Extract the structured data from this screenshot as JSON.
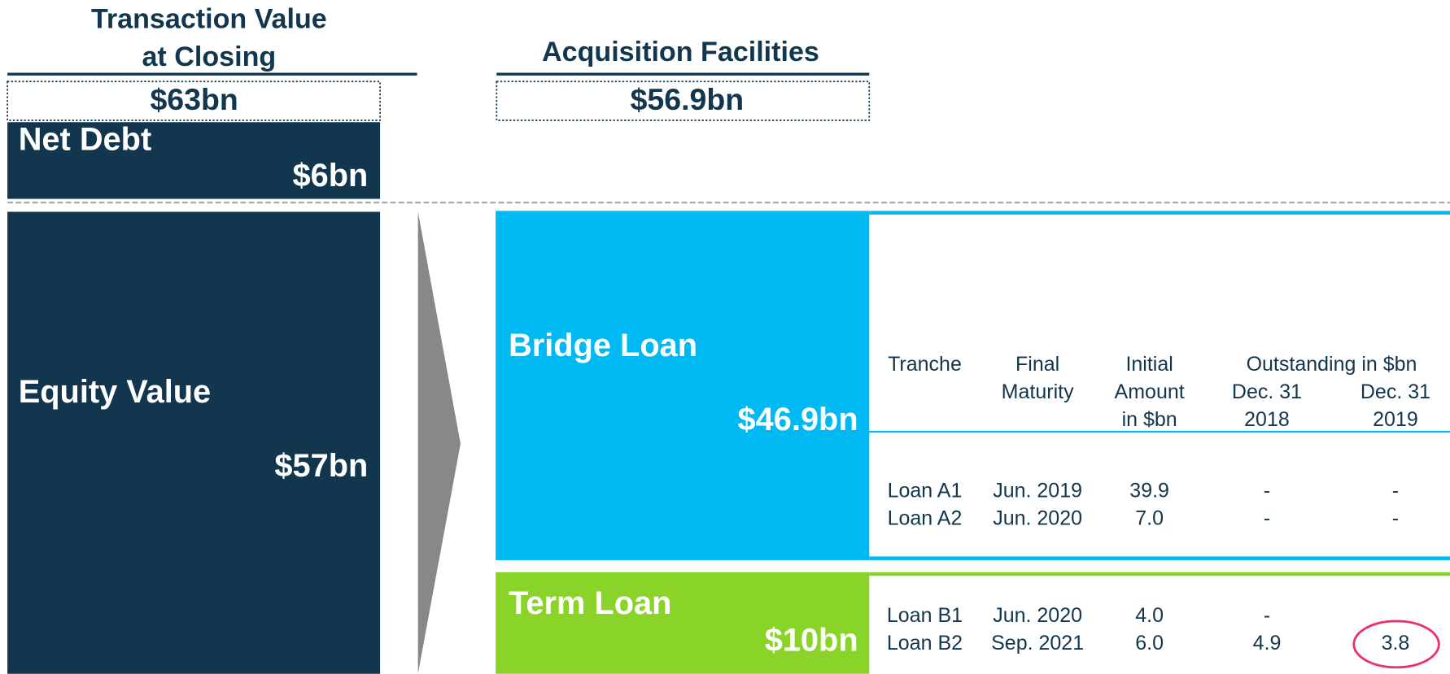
{
  "transaction": {
    "title": [
      "Transaction Value",
      "at Closing"
    ],
    "total": "$63bn",
    "net_debt": {
      "label": "Net Debt",
      "value": "$6bn"
    },
    "equity": {
      "label": "Equity Value",
      "value": "$57bn"
    }
  },
  "facilities": {
    "title": "Acquisition Facilities",
    "total": "$56.9bn",
    "bridge": {
      "label": "Bridge Loan",
      "value": "$46.9bn"
    },
    "term": {
      "label": "Term Loan",
      "value": "$10bn"
    },
    "table": {
      "header": {
        "tranche": "Tranche",
        "maturity": [
          "Final",
          "Maturity"
        ],
        "initial": [
          "Initial",
          "Amount",
          "in $bn"
        ],
        "outstanding": "Outstanding in $bn",
        "dec2018": [
          "Dec. 31",
          "2018"
        ],
        "dec2019": [
          "Dec. 31",
          "2019"
        ]
      },
      "rows": [
        [
          "Loan A1",
          "Jun. 2019",
          "39.9",
          "-",
          "-"
        ],
        [
          "Loan A2",
          "Jun. 2020",
          "7.0",
          "-",
          "-"
        ],
        [
          "Loan B1",
          "Jun. 2020",
          "4.0",
          "-",
          ""
        ],
        [
          "Loan B2",
          "Sep. 2021",
          "6.0",
          "4.9",
          "3.8"
        ]
      ]
    }
  }
}
